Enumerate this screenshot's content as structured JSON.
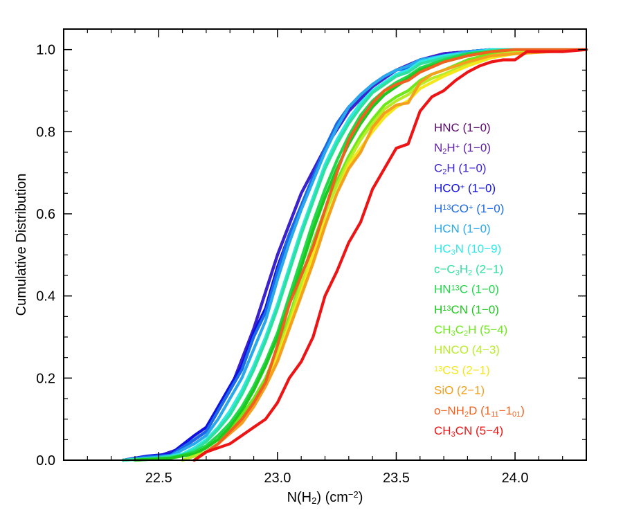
{
  "chart_data": {
    "type": "line",
    "title": "",
    "xlabel": "N(H₂) (cm⁻²)",
    "xlabel_parts": [
      "N(H",
      "2",
      ") (cm",
      "−2",
      ")"
    ],
    "ylabel": "Cumulative Distribution",
    "xlim": [
      22.1,
      24.3
    ],
    "ylim": [
      0.0,
      1.05
    ],
    "x_ticks": [
      22.5,
      23.0,
      23.5,
      24.0
    ],
    "x_tick_labels": [
      "22.5",
      "23.0",
      "23.5",
      "24.0"
    ],
    "y_ticks": [
      0.0,
      0.2,
      0.4,
      0.6,
      0.8,
      1.0
    ],
    "y_tick_labels": [
      "0.0",
      "0.2",
      "0.4",
      "0.6",
      "0.8",
      "1.0"
    ],
    "legend_position": "right",
    "series": [
      {
        "name": "HNC (1−0)",
        "legend": [
          {
            "t": "HNC (1−0)"
          }
        ],
        "color": "#5a0a6e",
        "x": [
          22.35,
          22.5,
          22.6,
          22.7,
          22.8,
          22.9,
          23.0,
          23.1,
          23.2,
          23.3,
          23.4,
          23.5,
          23.6,
          23.7,
          23.8,
          23.9,
          24.0,
          24.3
        ],
        "y": [
          0.0,
          0.01,
          0.03,
          0.07,
          0.17,
          0.32,
          0.5,
          0.65,
          0.76,
          0.85,
          0.91,
          0.95,
          0.975,
          0.99,
          0.995,
          1.0,
          1.0,
          1.0
        ]
      },
      {
        "name": "N₂H⁺ (1−0)",
        "legend": [
          {
            "t": "N"
          },
          {
            "t": "2",
            "s": "sub"
          },
          {
            "t": "H"
          },
          {
            "t": "+",
            "s": "sup"
          },
          {
            "t": " (1−0)"
          }
        ],
        "color": "#5e1fa8",
        "x": [
          22.35,
          22.5,
          22.6,
          22.7,
          22.8,
          22.9,
          23.0,
          23.1,
          23.2,
          23.3,
          23.4,
          23.5,
          23.6,
          23.7,
          23.8,
          23.9,
          24.0,
          24.3
        ],
        "y": [
          0.0,
          0.01,
          0.03,
          0.07,
          0.17,
          0.32,
          0.5,
          0.65,
          0.76,
          0.85,
          0.91,
          0.95,
          0.975,
          0.99,
          0.995,
          1.0,
          1.0,
          1.0
        ]
      },
      {
        "name": "C₂H (1−0)",
        "legend": [
          {
            "t": "C"
          },
          {
            "t": "2",
            "s": "sub"
          },
          {
            "t": "H (1−0)"
          }
        ],
        "color": "#3a22d0",
        "x": [
          22.35,
          22.5,
          22.6,
          22.7,
          22.8,
          22.9,
          23.0,
          23.1,
          23.2,
          23.3,
          23.4,
          23.5,
          23.6,
          23.7,
          23.8,
          23.9,
          24.0,
          24.3
        ],
        "y": [
          0.0,
          0.01,
          0.03,
          0.07,
          0.17,
          0.32,
          0.5,
          0.65,
          0.76,
          0.85,
          0.91,
          0.95,
          0.975,
          0.99,
          0.995,
          1.0,
          1.0,
          1.0
        ]
      },
      {
        "name": "HCO⁺ (1−0)",
        "legend": [
          {
            "t": "HCO"
          },
          {
            "t": "+",
            "s": "sup"
          },
          {
            "t": " (1−0)"
          }
        ],
        "color": "#1010e0",
        "x": [
          22.35,
          22.45,
          22.55,
          22.65,
          22.7,
          22.75,
          22.8,
          22.85,
          22.9,
          22.95,
          23.0,
          23.05,
          23.1,
          23.15,
          23.2,
          23.25,
          23.3,
          23.35,
          23.4,
          23.45,
          23.5,
          23.55,
          23.6,
          23.7,
          23.8,
          23.9,
          24.0,
          24.3
        ],
        "y": [
          0.0,
          0.01,
          0.015,
          0.06,
          0.08,
          0.13,
          0.18,
          0.23,
          0.31,
          0.37,
          0.47,
          0.55,
          0.62,
          0.69,
          0.76,
          0.82,
          0.86,
          0.89,
          0.915,
          0.935,
          0.95,
          0.955,
          0.975,
          0.985,
          0.995,
          1.0,
          1.0,
          1.0
        ]
      },
      {
        "name": "H¹³CO⁺ (1−0)",
        "legend": [
          {
            "t": "H"
          },
          {
            "t": "13",
            "s": "sup"
          },
          {
            "t": "CO"
          },
          {
            "t": "+",
            "s": "sup"
          },
          {
            "t": " (1−0)"
          }
        ],
        "color": "#1a6ae8",
        "x": [
          22.35,
          22.45,
          22.55,
          22.65,
          22.7,
          22.75,
          22.8,
          22.85,
          22.9,
          22.95,
          23.0,
          23.05,
          23.1,
          23.15,
          23.2,
          23.25,
          23.3,
          23.35,
          23.4,
          23.45,
          23.5,
          23.55,
          23.6,
          23.7,
          23.8,
          23.9,
          24.0,
          24.3
        ],
        "y": [
          0.0,
          0.008,
          0.012,
          0.05,
          0.07,
          0.12,
          0.17,
          0.22,
          0.3,
          0.36,
          0.46,
          0.55,
          0.62,
          0.69,
          0.76,
          0.82,
          0.86,
          0.89,
          0.915,
          0.935,
          0.95,
          0.955,
          0.975,
          0.985,
          0.995,
          1.0,
          1.0,
          1.0
        ]
      },
      {
        "name": "HCN (1−0)",
        "legend": [
          {
            "t": "HCN (1−0)"
          }
        ],
        "color": "#29a8ec",
        "x": [
          22.35,
          22.45,
          22.55,
          22.65,
          22.7,
          22.75,
          22.8,
          22.85,
          22.9,
          22.95,
          23.0,
          23.05,
          23.1,
          23.15,
          23.2,
          23.25,
          23.3,
          23.35,
          23.4,
          23.45,
          23.5,
          23.55,
          23.6,
          23.7,
          23.8,
          23.9,
          24.0,
          24.3
        ],
        "y": [
          0.0,
          0.005,
          0.01,
          0.04,
          0.06,
          0.1,
          0.15,
          0.2,
          0.27,
          0.34,
          0.44,
          0.53,
          0.61,
          0.68,
          0.75,
          0.81,
          0.86,
          0.89,
          0.915,
          0.935,
          0.95,
          0.96,
          0.975,
          0.985,
          0.995,
          1.0,
          1.0,
          1.0
        ]
      },
      {
        "name": "HC₃N (10−9)",
        "legend": [
          {
            "t": "HC"
          },
          {
            "t": "3",
            "s": "sub"
          },
          {
            "t": "N (10−9)"
          }
        ],
        "color": "#2ee8e8",
        "x": [
          22.35,
          22.5,
          22.6,
          22.65,
          22.7,
          22.75,
          22.8,
          22.85,
          22.9,
          22.95,
          23.0,
          23.05,
          23.1,
          23.15,
          23.2,
          23.25,
          23.3,
          23.35,
          23.4,
          23.45,
          23.5,
          23.55,
          23.6,
          23.7,
          23.8,
          23.9,
          24.0,
          24.3
        ],
        "y": [
          0.0,
          0.005,
          0.015,
          0.03,
          0.05,
          0.08,
          0.12,
          0.17,
          0.23,
          0.3,
          0.38,
          0.47,
          0.56,
          0.64,
          0.72,
          0.78,
          0.83,
          0.87,
          0.9,
          0.92,
          0.94,
          0.95,
          0.97,
          0.985,
          0.99,
          1.0,
          1.0,
          1.0
        ]
      },
      {
        "name": "c−C₃H₂ (2−1)",
        "legend": [
          {
            "t": "c−C"
          },
          {
            "t": "3",
            "s": "sub"
          },
          {
            "t": "H"
          },
          {
            "t": "2",
            "s": "sub"
          },
          {
            "t": " (2−1)"
          }
        ],
        "color": "#2de0a0",
        "x": [
          22.35,
          22.5,
          22.6,
          22.65,
          22.7,
          22.75,
          22.8,
          22.85,
          22.9,
          22.95,
          23.0,
          23.05,
          23.1,
          23.15,
          23.2,
          23.25,
          23.3,
          23.35,
          23.4,
          23.45,
          23.5,
          23.55,
          23.6,
          23.7,
          23.8,
          23.9,
          24.0,
          24.3
        ],
        "y": [
          0.0,
          0.005,
          0.012,
          0.025,
          0.045,
          0.075,
          0.11,
          0.16,
          0.22,
          0.29,
          0.37,
          0.46,
          0.55,
          0.63,
          0.71,
          0.77,
          0.82,
          0.86,
          0.895,
          0.915,
          0.935,
          0.945,
          0.965,
          0.98,
          0.99,
          0.998,
          1.0,
          1.0
        ]
      },
      {
        "name": "HN¹³C (1−0)",
        "legend": [
          {
            "t": "HN"
          },
          {
            "t": "13",
            "s": "sup"
          },
          {
            "t": "C (1−0)"
          }
        ],
        "color": "#22d84a",
        "x": [
          22.4,
          22.55,
          22.65,
          22.7,
          22.75,
          22.8,
          22.85,
          22.9,
          22.95,
          23.0,
          23.05,
          23.1,
          23.15,
          23.2,
          23.25,
          23.3,
          23.35,
          23.4,
          23.45,
          23.5,
          23.55,
          23.6,
          23.7,
          23.8,
          23.9,
          24.0,
          24.3
        ],
        "y": [
          0.0,
          0.005,
          0.02,
          0.035,
          0.06,
          0.09,
          0.13,
          0.18,
          0.24,
          0.31,
          0.4,
          0.49,
          0.58,
          0.66,
          0.73,
          0.79,
          0.84,
          0.875,
          0.9,
          0.92,
          0.935,
          0.955,
          0.975,
          0.99,
          0.995,
          1.0,
          1.0
        ]
      },
      {
        "name": "H¹³CN (1−0)",
        "legend": [
          {
            "t": "H"
          },
          {
            "t": "13",
            "s": "sup"
          },
          {
            "t": "CN (1−0)"
          }
        ],
        "color": "#1ec81e",
        "x": [
          22.4,
          22.55,
          22.65,
          22.7,
          22.75,
          22.8,
          22.85,
          22.9,
          22.95,
          23.0,
          23.05,
          23.1,
          23.15,
          23.2,
          23.25,
          23.3,
          23.35,
          23.4,
          23.45,
          23.5,
          23.55,
          23.6,
          23.7,
          23.8,
          23.9,
          24.0,
          24.3
        ],
        "y": [
          0.0,
          0.005,
          0.015,
          0.03,
          0.05,
          0.08,
          0.12,
          0.17,
          0.23,
          0.3,
          0.38,
          0.47,
          0.56,
          0.64,
          0.71,
          0.77,
          0.82,
          0.86,
          0.89,
          0.91,
          0.93,
          0.95,
          0.97,
          0.985,
          0.995,
          1.0,
          1.0
        ]
      },
      {
        "name": "CH₃C₂H (5−4)",
        "legend": [
          {
            "t": "CH"
          },
          {
            "t": "3",
            "s": "sub"
          },
          {
            "t": "C"
          },
          {
            "t": "2",
            "s": "sub"
          },
          {
            "t": "H (5−4)"
          }
        ],
        "color": "#6ee81a",
        "x": [
          22.6,
          22.7,
          22.75,
          22.8,
          22.85,
          22.9,
          22.95,
          23.0,
          23.05,
          23.1,
          23.15,
          23.2,
          23.25,
          23.3,
          23.35,
          23.4,
          23.45,
          23.5,
          23.55,
          23.6,
          23.65,
          23.7,
          23.8,
          23.9,
          24.0,
          24.3
        ],
        "y": [
          0.0,
          0.02,
          0.04,
          0.07,
          0.11,
          0.15,
          0.2,
          0.27,
          0.35,
          0.44,
          0.53,
          0.61,
          0.68,
          0.74,
          0.79,
          0.83,
          0.865,
          0.885,
          0.9,
          0.925,
          0.94,
          0.95,
          0.975,
          0.99,
          0.995,
          1.0
        ]
      },
      {
        "name": "HNCO (4−3)",
        "legend": [
          {
            "t": "HNCO (4−3)"
          }
        ],
        "color": "#b8ec28",
        "x": [
          22.6,
          22.7,
          22.75,
          22.8,
          22.85,
          22.9,
          22.95,
          23.0,
          23.05,
          23.1,
          23.15,
          23.2,
          23.25,
          23.3,
          23.35,
          23.4,
          23.45,
          23.5,
          23.55,
          23.6,
          23.65,
          23.7,
          23.8,
          23.9,
          24.0,
          24.3
        ],
        "y": [
          0.0,
          0.02,
          0.04,
          0.07,
          0.1,
          0.14,
          0.19,
          0.26,
          0.34,
          0.43,
          0.52,
          0.6,
          0.67,
          0.73,
          0.78,
          0.82,
          0.855,
          0.875,
          0.89,
          0.915,
          0.93,
          0.94,
          0.965,
          0.985,
          0.995,
          1.0
        ]
      },
      {
        "name": "¹³CS (2−1)",
        "legend": [
          {
            "t": "13",
            "s": "sup"
          },
          {
            "t": "CS (2−1)"
          }
        ],
        "color": "#f4e81a",
        "x": [
          22.65,
          22.7,
          22.75,
          22.8,
          22.85,
          22.9,
          22.95,
          23.0,
          23.05,
          23.1,
          23.15,
          23.2,
          23.25,
          23.3,
          23.35,
          23.4,
          23.45,
          23.5,
          23.55,
          23.6,
          23.65,
          23.7,
          23.8,
          23.9,
          24.0,
          24.3
        ],
        "y": [
          0.0,
          0.02,
          0.04,
          0.07,
          0.1,
          0.14,
          0.19,
          0.25,
          0.33,
          0.41,
          0.5,
          0.58,
          0.65,
          0.72,
          0.76,
          0.8,
          0.835,
          0.86,
          0.875,
          0.905,
          0.92,
          0.935,
          0.96,
          0.98,
          0.99,
          1.0
        ]
      },
      {
        "name": "SiO (2−1)",
        "legend": [
          {
            "t": "SiO (2−1)"
          }
        ],
        "color": "#f4a01e",
        "x": [
          22.65,
          22.7,
          22.75,
          22.8,
          22.85,
          22.9,
          22.95,
          23.0,
          23.05,
          23.1,
          23.15,
          23.2,
          23.25,
          23.3,
          23.35,
          23.4,
          23.45,
          23.5,
          23.55,
          23.6,
          23.65,
          23.7,
          23.8,
          23.9,
          24.0,
          24.3
        ],
        "y": [
          0.0,
          0.02,
          0.04,
          0.065,
          0.09,
          0.13,
          0.18,
          0.24,
          0.32,
          0.4,
          0.48,
          0.57,
          0.65,
          0.71,
          0.75,
          0.81,
          0.845,
          0.865,
          0.87,
          0.92,
          0.94,
          0.95,
          0.97,
          0.985,
          0.99,
          1.0
        ]
      },
      {
        "name": "o−NH₂D (1₁₁−1₀₁)",
        "legend": [
          {
            "t": "o−NH"
          },
          {
            "t": "2",
            "s": "sub"
          },
          {
            "t": "D (1"
          },
          {
            "t": "11",
            "s": "sub"
          },
          {
            "t": "−1"
          },
          {
            "t": "01",
            "s": "sub"
          },
          {
            "t": ")"
          }
        ],
        "color": "#f0601e",
        "x": [
          22.65,
          22.7,
          22.75,
          22.8,
          22.85,
          22.9,
          22.95,
          23.0,
          23.05,
          23.1,
          23.15,
          23.2,
          23.25,
          23.3,
          23.35,
          23.4,
          23.45,
          23.5,
          23.55,
          23.6,
          23.7,
          23.8,
          23.9,
          24.0,
          24.3
        ],
        "y": [
          0.0,
          0.02,
          0.04,
          0.07,
          0.1,
          0.14,
          0.19,
          0.28,
          0.38,
          0.45,
          0.52,
          0.61,
          0.7,
          0.78,
          0.83,
          0.87,
          0.9,
          0.915,
          0.925,
          0.945,
          0.97,
          0.985,
          0.995,
          1.0,
          1.0
        ]
      },
      {
        "name": "CH₃CN (5−4)",
        "legend": [
          {
            "t": "CH"
          },
          {
            "t": "3",
            "s": "sub"
          },
          {
            "t": "CN (5−4)"
          }
        ],
        "color": "#ec1414",
        "x": [
          22.65,
          22.7,
          22.75,
          22.8,
          22.85,
          22.9,
          22.95,
          23.0,
          23.05,
          23.1,
          23.15,
          23.2,
          23.25,
          23.3,
          23.35,
          23.4,
          23.45,
          23.5,
          23.55,
          23.6,
          23.65,
          23.7,
          23.75,
          23.8,
          23.85,
          23.9,
          23.95,
          24.0,
          24.05,
          24.2,
          24.3
        ],
        "y": [
          0.0,
          0.02,
          0.03,
          0.04,
          0.06,
          0.08,
          0.1,
          0.14,
          0.2,
          0.24,
          0.3,
          0.4,
          0.46,
          0.53,
          0.58,
          0.66,
          0.71,
          0.76,
          0.77,
          0.85,
          0.885,
          0.9,
          0.925,
          0.945,
          0.96,
          0.97,
          0.975,
          0.975,
          0.995,
          0.995,
          1.0
        ]
      }
    ]
  }
}
